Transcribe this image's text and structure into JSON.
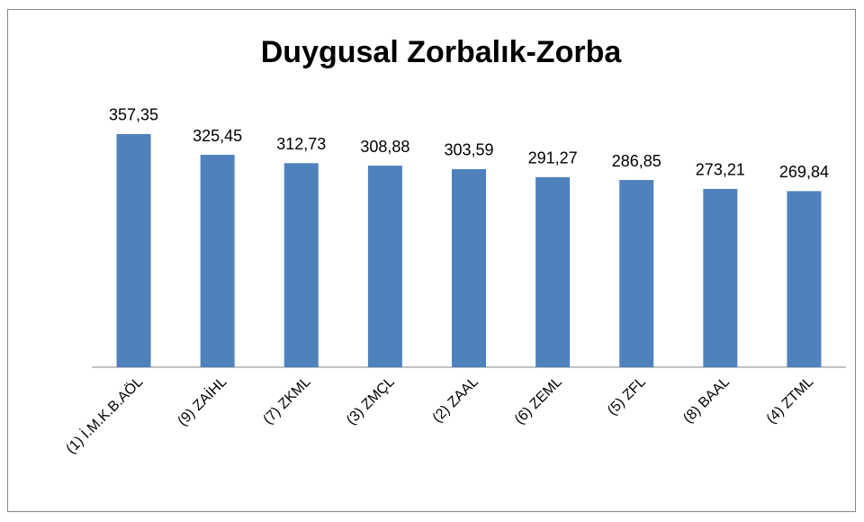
{
  "chart_data": {
    "type": "bar",
    "title": "Duygusal Zorbalık-Zorba",
    "categories": [
      "(1) İ.M.K.B.AÖL",
      "(9) ZAİHL",
      "(7) ZKML",
      "(3) ZMÇL",
      "(2) ZAAL",
      "(6) ZEML",
      "(5) ZFL",
      "(8) BAAL",
      "(4) ZTML"
    ],
    "values": [
      357.35,
      325.45,
      312.73,
      308.88,
      303.59,
      291.27,
      286.85,
      273.21,
      269.84
    ],
    "value_labels": [
      "357,35",
      "325,45",
      "312,73",
      "308,88",
      "303,59",
      "291,27",
      "286,85",
      "273,21",
      "269,84"
    ],
    "color": "#4f81bd",
    "ylim": [
      0,
      400
    ]
  }
}
